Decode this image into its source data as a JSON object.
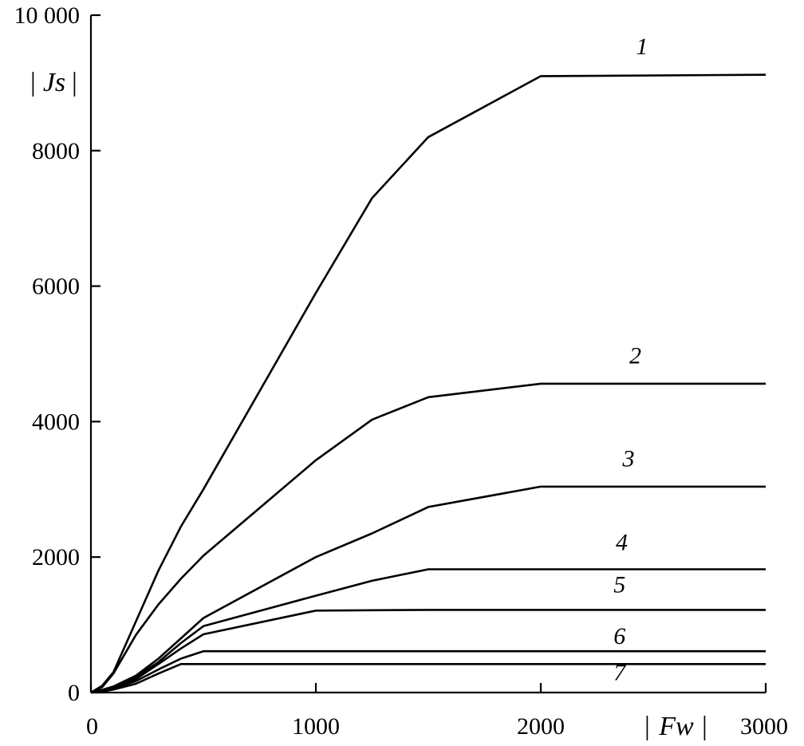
{
  "chart_data": {
    "type": "line",
    "title": "",
    "xlabel": "Fw",
    "ylabel": "Js",
    "xlim": [
      0,
      3000
    ],
    "ylim": [
      0,
      10000
    ],
    "x_ticks": [
      {
        "value": 0,
        "label": "0"
      },
      {
        "value": 1000,
        "label": "1000"
      },
      {
        "value": 2000,
        "label": "2000"
      },
      {
        "value": 3000,
        "label": "3000"
      }
    ],
    "y_ticks": [
      {
        "value": 0,
        "label": "0"
      },
      {
        "value": 2000,
        "label": "2000"
      },
      {
        "value": 4000,
        "label": "4000"
      },
      {
        "value": 6000,
        "label": "6000"
      },
      {
        "value": 8000,
        "label": "8000"
      },
      {
        "value": 10000,
        "label": "10 000"
      }
    ],
    "grid": false,
    "legend": "none",
    "series": [
      {
        "name": "1",
        "x": [
          0,
          50,
          100,
          200,
          300,
          400,
          500,
          1000,
          1250,
          1500,
          2000,
          3000
        ],
        "y": [
          0,
          100,
          300,
          1050,
          1800,
          2450,
          3000,
          5900,
          7300,
          8200,
          9100,
          9120
        ]
      },
      {
        "name": "2",
        "x": [
          0,
          50,
          100,
          200,
          300,
          400,
          500,
          1000,
          1250,
          1500,
          2000,
          3000
        ],
        "y": [
          0,
          80,
          280,
          850,
          1300,
          1680,
          2020,
          3430,
          4030,
          4360,
          4560,
          4560
        ]
      },
      {
        "name": "3",
        "x": [
          0,
          50,
          100,
          200,
          300,
          400,
          500,
          1000,
          1250,
          1500,
          2000,
          3000
        ],
        "y": [
          0,
          40,
          90,
          250,
          500,
          800,
          1100,
          2000,
          2350,
          2740,
          3040,
          3040
        ]
      },
      {
        "name": "4",
        "x": [
          0,
          50,
          100,
          200,
          300,
          400,
          500,
          1000,
          1250,
          1500,
          3000
        ],
        "y": [
          0,
          30,
          80,
          230,
          450,
          730,
          980,
          1430,
          1650,
          1820,
          1820
        ]
      },
      {
        "name": "5",
        "x": [
          0,
          50,
          100,
          200,
          300,
          400,
          500,
          1000,
          1500,
          3000
        ],
        "y": [
          0,
          25,
          70,
          200,
          420,
          650,
          860,
          1210,
          1220,
          1220
        ]
      },
      {
        "name": "6",
        "x": [
          0,
          50,
          100,
          200,
          300,
          400,
          500,
          3000
        ],
        "y": [
          0,
          20,
          60,
          170,
          340,
          500,
          610,
          610
        ]
      },
      {
        "name": "7",
        "x": [
          0,
          50,
          100,
          200,
          300,
          400,
          3000
        ],
        "y": [
          0,
          15,
          45,
          130,
          280,
          420,
          420
        ]
      }
    ],
    "series_labels": [
      {
        "text": "1",
        "x": 2450,
        "y": 9420
      },
      {
        "text": "2",
        "x": 2420,
        "y": 4860
      },
      {
        "text": "3",
        "x": 2390,
        "y": 3340
      },
      {
        "text": "4",
        "x": 2360,
        "y": 2100
      },
      {
        "text": "5",
        "x": 2350,
        "y": 1480
      },
      {
        "text": "6",
        "x": 2350,
        "y": 720
      },
      {
        "text": "7",
        "x": 2350,
        "y": 180
      }
    ]
  }
}
